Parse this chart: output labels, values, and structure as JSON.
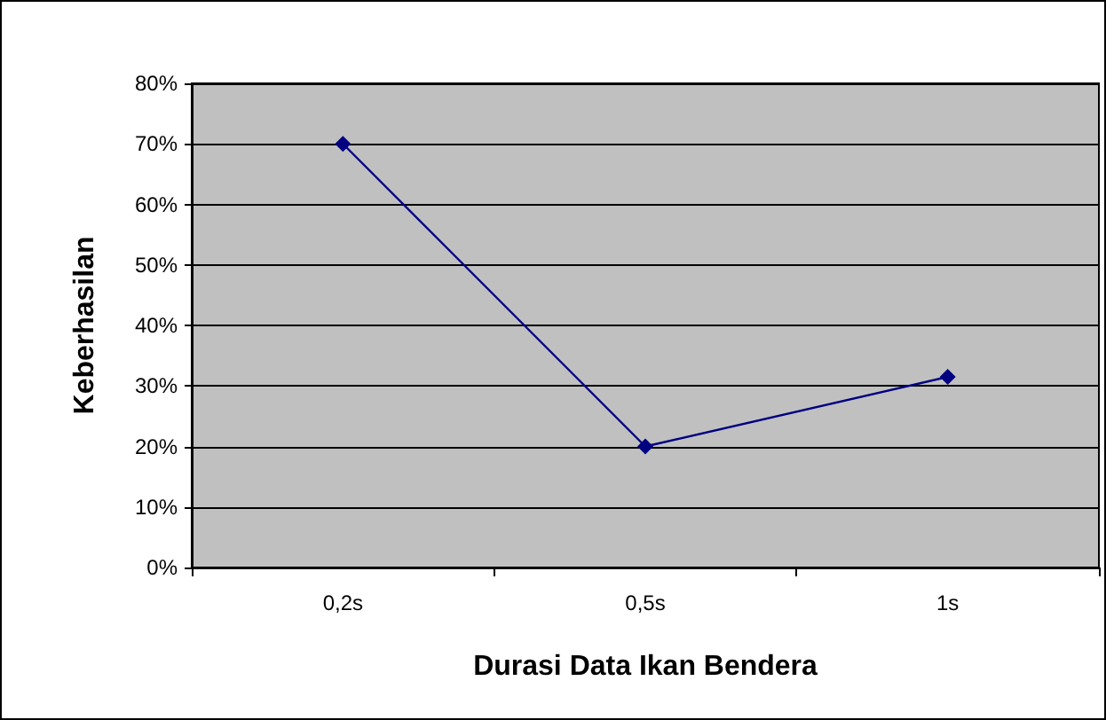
{
  "chart_data": {
    "type": "line",
    "xlabel": "Durasi Data Ikan Bendera",
    "ylabel": "Keberhasilan",
    "categories": [
      "0,2s",
      "0,5s",
      "1s"
    ],
    "series": [
      {
        "color": "#000080",
        "values": [
          70,
          20,
          31.5
        ]
      }
    ],
    "ylim": [
      0,
      80
    ],
    "yticks": [
      {
        "value": 0,
        "label": "0%"
      },
      {
        "value": 10,
        "label": "10%"
      },
      {
        "value": 20,
        "label": "20%"
      },
      {
        "value": 30,
        "label": "30%"
      },
      {
        "value": 40,
        "label": "40%"
      },
      {
        "value": 50,
        "label": "50%"
      },
      {
        "value": 60,
        "label": "60%"
      },
      {
        "value": 70,
        "label": "70%"
      },
      {
        "value": 80,
        "label": "80%"
      }
    ],
    "grid": "y",
    "marker": "diamond",
    "line_style": "solid"
  }
}
